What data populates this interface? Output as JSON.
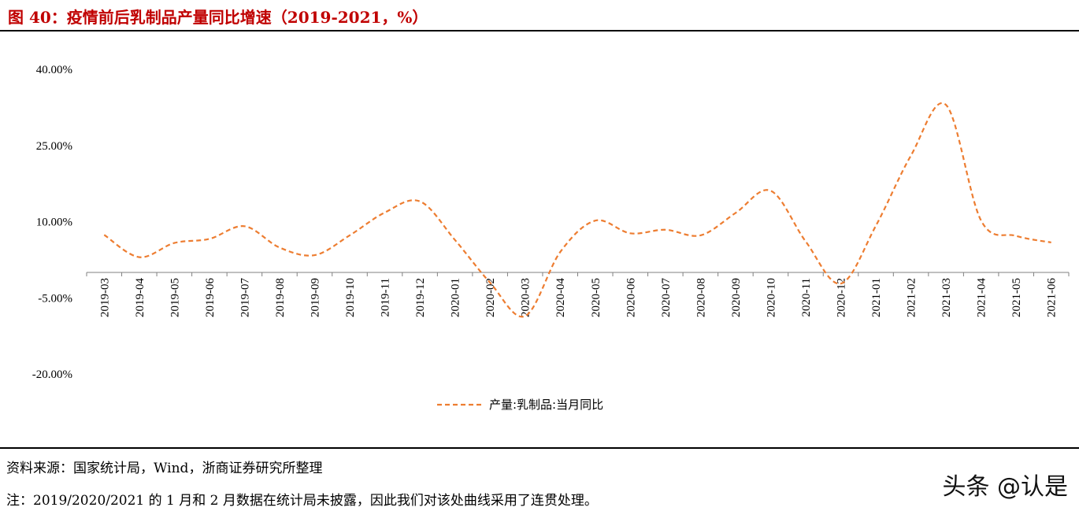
{
  "header": {
    "title": "图 40：疫情前后乳制品产量同比增速（2019-2021，%）"
  },
  "footer": {
    "source": "资料来源：国家统计局，Wind，浙商证券研究所整理",
    "note": "注：2019/2020/2021 的 1 月和 2 月数据在统计局未披露，因此我们对该处曲线采用了连贯处理。",
    "watermark": "头条 @认是"
  },
  "colors": {
    "series": "#ed7d31",
    "title": "#c00000"
  },
  "chart_data": {
    "type": "line",
    "categories": [
      "2019-03",
      "2019-04",
      "2019-05",
      "2019-06",
      "2019-07",
      "2019-08",
      "2019-09",
      "2019-10",
      "2019-11",
      "2019-12",
      "2020-01",
      "2020-02",
      "2020-03",
      "2020-04",
      "2020-05",
      "2020-06",
      "2020-07",
      "2020-08",
      "2020-09",
      "2020-10",
      "2020-11",
      "2020-12",
      "2021-01",
      "2021-02",
      "2021-03",
      "2021-04",
      "2021-05",
      "2021-06"
    ],
    "series": [
      {
        "name": "产量:乳制品:当月同比",
        "style": "dashed",
        "values": [
          7.4,
          3.0,
          5.8,
          6.6,
          9.1,
          4.9,
          3.4,
          7.3,
          11.8,
          14.0,
          6.4,
          -2.0,
          -8.6,
          4.0,
          10.2,
          7.7,
          8.4,
          7.3,
          11.7,
          16.1,
          6.1,
          -2.2,
          9.2,
          23.0,
          33.0,
          10.2,
          7.2,
          5.9
        ]
      }
    ],
    "yticks": [
      "40.00%",
      "25.00%",
      "10.00%",
      "-5.00%",
      "-20.00%"
    ],
    "ylim": [
      -20,
      40
    ],
    "legend": "bottom-center",
    "grid": false
  }
}
